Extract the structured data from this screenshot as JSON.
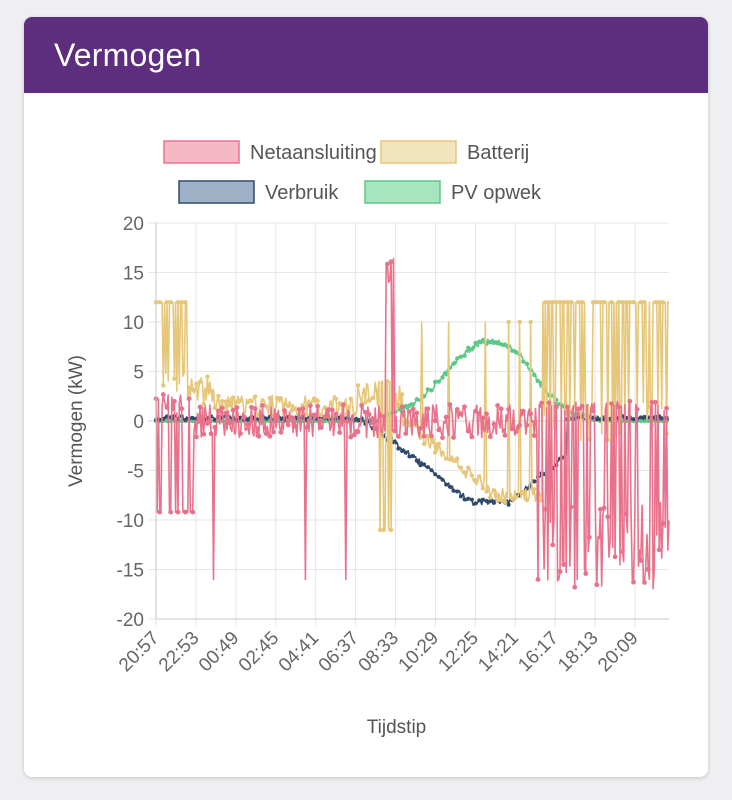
{
  "card": {
    "title": "Vermogen"
  },
  "chart_data": {
    "type": "line",
    "title": "",
    "xlabel": "Tijdstip",
    "ylabel": "Vermogen (kW)",
    "ylim": [
      -20,
      20
    ],
    "yticks": [
      20,
      15,
      10,
      5,
      0,
      -5,
      -10,
      -15,
      -20
    ],
    "xticks": [
      "20:57",
      "22:53",
      "00:49",
      "02:45",
      "04:41",
      "06:37",
      "08:33",
      "10:29",
      "12:25",
      "14:21",
      "16:17",
      "18:13",
      "20:09"
    ],
    "x_start_hours": 20.95,
    "x_end_hours": 47.85,
    "grid": true,
    "legend_position": "top",
    "series": [
      {
        "name": "Netaansluiting",
        "color": "#e8728c",
        "fill": "#f7b8c6"
      },
      {
        "name": "Batterij",
        "color": "#e6c77a",
        "fill": "#f2e4bb"
      },
      {
        "name": "Verbruik",
        "color": "#2f4a6a",
        "fill": "#9fb1c6"
      },
      {
        "name": "PV opwek",
        "color": "#5cc787",
        "fill": "#a6e6bf"
      }
    ]
  }
}
